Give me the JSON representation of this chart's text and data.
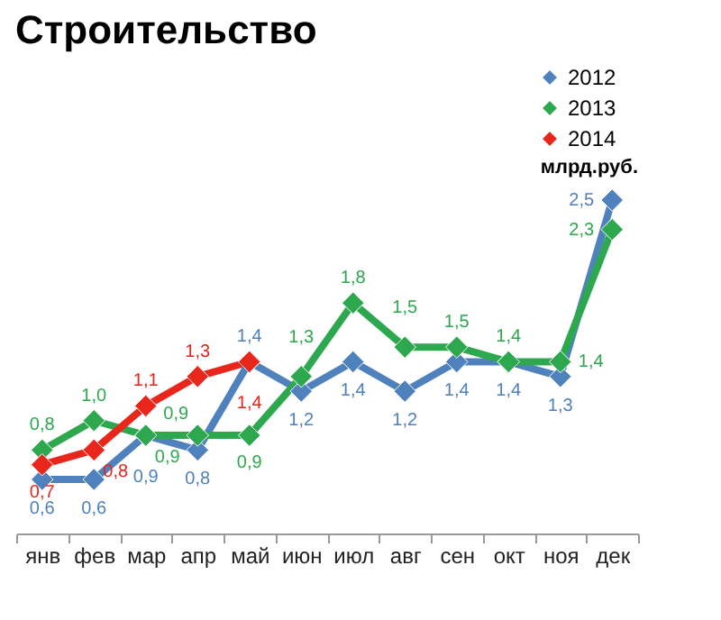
{
  "chart_data": {
    "type": "line",
    "title": "Строительство",
    "categories": [
      "янв",
      "фев",
      "мар",
      "апр",
      "май",
      "июн",
      "июл",
      "авг",
      "сен",
      "окт",
      "ноя",
      "дек"
    ],
    "series": [
      {
        "name": "2012",
        "color": "#4f81bd",
        "values": [
          0.6,
          0.6,
          0.9,
          0.8,
          1.4,
          1.2,
          1.4,
          1.2,
          1.4,
          1.4,
          1.3,
          2.5
        ],
        "value_labels": [
          "0,6",
          "0,6",
          "0,9",
          "0,8",
          "1,4",
          "1,2",
          "1,4",
          "1,2",
          "1,4",
          "1,4",
          "1,3",
          "2,5"
        ]
      },
      {
        "name": "2013",
        "color": "#2ea84f",
        "values": [
          0.8,
          1.0,
          0.9,
          0.9,
          0.9,
          1.3,
          1.8,
          1.5,
          1.5,
          1.4,
          1.4,
          2.3
        ],
        "value_labels": [
          "0,8",
          "1,0",
          "0,9",
          "0,9",
          "0,9",
          "1,3",
          "1,8",
          "1,5",
          "1,5",
          "1,4",
          "1,4",
          "2,3"
        ]
      },
      {
        "name": "2014",
        "color": "#e8261c",
        "values": [
          0.7,
          0.8,
          1.1,
          1.3,
          1.4,
          null,
          null,
          null,
          null,
          null,
          null,
          null
        ],
        "value_labels": [
          "0,7",
          "0,8",
          "1,1",
          "1,3",
          "1,4",
          null,
          null,
          null,
          null,
          null,
          null,
          null
        ]
      }
    ],
    "annotations": [
      "млрд.руб."
    ],
    "marker": "diamond",
    "line_style": "solid",
    "legend": "top right",
    "grid": false
  }
}
